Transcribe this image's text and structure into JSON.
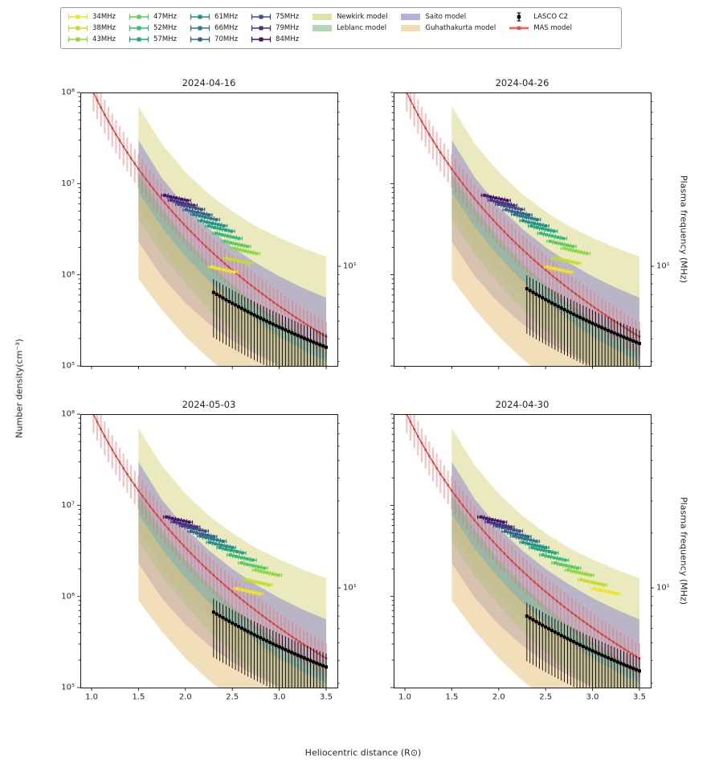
{
  "figure": {
    "background": "#ffffff",
    "xlabel": "Heliocentric distance (R⊙)",
    "ylabel_left": "Number density(cm⁻³)",
    "ylabel_right": "Plasma frequency (MHz)"
  },
  "legend": {
    "freq_items": [
      {
        "label": "34MHz",
        "color": "#f0e32a"
      },
      {
        "label": "38MHz",
        "color": "#c3dd2c"
      },
      {
        "label": "43MHz",
        "color": "#8ed645"
      },
      {
        "label": "47MHz",
        "color": "#5ec962"
      },
      {
        "label": "52MHz",
        "color": "#38b977"
      },
      {
        "label": "57MHz",
        "color": "#25a584"
      },
      {
        "label": "61MHz",
        "color": "#21918c"
      },
      {
        "label": "66MHz",
        "color": "#2a7a8e"
      },
      {
        "label": "70MHz",
        "color": "#33648d"
      },
      {
        "label": "75MHz",
        "color": "#3d4e8a"
      },
      {
        "label": "79MHz",
        "color": "#46327e"
      },
      {
        "label": "84MHz",
        "color": "#45156e"
      }
    ],
    "model_items": [
      {
        "label": "Newkirk model",
        "color": "#e1e2a8"
      },
      {
        "label": "Leblanc model",
        "color": "#b4d6b4"
      },
      {
        "label": "Saito model",
        "color": "#b6aede"
      },
      {
        "label": "Guhathakurta model",
        "color": "#f0ddb0"
      }
    ],
    "marker_items": [
      {
        "label": "LASCO C2",
        "color": "#000000",
        "type": "errorbar"
      },
      {
        "label": "MAS model",
        "color": "#e05252",
        "err_color": "#f4a6a6",
        "type": "line"
      }
    ]
  },
  "chart_data": {
    "type": "line",
    "subtype": "multi-panel errorbar on log-y axis",
    "xlabel": "Heliocentric distance (R⊙)",
    "ylabel": "Number density(cm⁻³)",
    "ylabel_right": "Plasma frequency (MHz)",
    "xlim": [
      0.88,
      3.62
    ],
    "ylog_lim": [
      5,
      8
    ],
    "x_ticks": [
      {
        "label": "1.0",
        "value": 1.0
      },
      {
        "label": "1.5",
        "value": 1.5
      },
      {
        "label": "2.0",
        "value": 2.0
      },
      {
        "label": "2.5",
        "value": 2.5
      },
      {
        "label": "3.0",
        "value": 3.0
      },
      {
        "label": "3.5",
        "value": 3.5
      }
    ],
    "y_ticks": [
      {
        "label": "10⁵",
        "value": 100000.0
      },
      {
        "label": "10⁶",
        "value": 1000000.0
      },
      {
        "label": "10⁷",
        "value": 10000000.0
      },
      {
        "label": "10⁸",
        "value": 100000000.0
      }
    ],
    "right_tick": {
      "label": "10¹",
      "value": 1240000.0
    },
    "bands": [
      {
        "name": "Newkirk model",
        "fill": "rgba(214,214,125,0.5)",
        "x": [
          1.5,
          1.75,
          2.0,
          2.25,
          2.5,
          2.75,
          3.0,
          3.25,
          3.5
        ],
        "upper": [
          70000000.0,
          27000000.0,
          13400000.0,
          7700000.0,
          4950000.0,
          3400000.0,
          2550000.0,
          1970000.0,
          1580000.0
        ],
        "lower": [
          5400000.0,
          2100000.0,
          1030000.0,
          590000.0,
          380000.0,
          270000.0,
          200000.0,
          150000.0,
          120000.0
        ]
      },
      {
        "name": "Saito model",
        "fill": "rgba(138,128,205,0.5)",
        "x": [
          1.5,
          1.75,
          2.0,
          2.25,
          2.5,
          2.75,
          3.0,
          3.25,
          3.5
        ],
        "upper": [
          30000000.0,
          11500000.0,
          5600000.0,
          3200000.0,
          2000000.0,
          1350000.0,
          960000.0,
          720000.0,
          560000.0
        ],
        "lower": [
          2300000.0,
          950000.0,
          490000.0,
          290000.0,
          190000.0,
          135000.0,
          100000.0,
          78000.0,
          62000.0
        ]
      },
      {
        "name": "Leblanc model",
        "fill": "rgba(120,185,130,0.5)",
        "x": [
          1.5,
          1.75,
          2.0,
          2.25,
          2.5,
          2.75,
          3.0,
          3.25,
          3.5
        ],
        "upper": [
          12800000.0,
          5300000.0,
          2500000.0,
          1340000.0,
          780000.0,
          480000.0,
          315000.0,
          220000.0,
          157000.0
        ],
        "lower": [
          4000000.0,
          1670000.0,
          800000.0,
          420000.0,
          240000.0,
          150000.0,
          99000.0,
          68000.0,
          49000.0
        ]
      },
      {
        "name": "Guhathakurta model",
        "fill": "rgba(232,196,130,0.55)",
        "x": [
          1.5,
          1.75,
          2.0,
          2.25,
          2.5,
          2.75,
          3.0,
          3.25,
          3.5
        ],
        "upper": [
          8000000.0,
          3300000.0,
          1600000.0,
          860000.0,
          510000.0,
          320000.0,
          210000.0,
          150000.0,
          110000.0
        ],
        "lower": [
          900000.0,
          410000.0,
          210000.0,
          120000.0,
          75000.0,
          50000.0,
          35000.0,
          26000.0,
          20000.0
        ]
      }
    ],
    "mas_model": {
      "r0": 1.02,
      "step": 0.04,
      "points": 63,
      "amplitude": 110000000.0,
      "power": -5,
      "err_up": 1.45,
      "err_down": 0.62,
      "line_color": "#d94040",
      "err_color": "rgba(235,110,110,0.45)"
    },
    "frequencies": [
      {
        "label": "34MHz",
        "color": "#f0e32a",
        "density": 1150000.0
      },
      {
        "label": "38MHz",
        "color": "#c3dd2c",
        "density": 1440000.0
      },
      {
        "label": "43MHz",
        "color": "#8ed645",
        "density": 1840000.0
      },
      {
        "label": "47MHz",
        "color": "#5ec962",
        "density": 2200000.0
      },
      {
        "label": "52MHz",
        "color": "#38b977",
        "density": 2690000.0
      },
      {
        "label": "57MHz",
        "color": "#25a584",
        "density": 3230000.0
      },
      {
        "label": "61MHz",
        "color": "#21918c",
        "density": 3700000.0
      },
      {
        "label": "66MHz",
        "color": "#2a7a8e",
        "density": 4330000.0
      },
      {
        "label": "70MHz",
        "color": "#33648d",
        "density": 4880000.0
      },
      {
        "label": "75MHz",
        "color": "#3d4e8a",
        "density": 5600000.0
      },
      {
        "label": "79MHz",
        "color": "#46327e",
        "density": 6210000.0
      },
      {
        "label": "84MHz",
        "color": "#45156e",
        "density": 7020000.0
      }
    ],
    "point_dx": [
      0,
      0.06,
      0.12,
      0.18,
      0.24
    ],
    "point_yfactor": [
      1.06,
      1.02,
      0.99,
      0.96,
      0.93
    ],
    "point_xerr": 0.035,
    "panels": [
      {
        "title": "2024-04-16",
        "show_y_labels": true,
        "show_x_labels": false,
        "lasco": {
          "x0": 2.3,
          "x1": 3.5,
          "points": 37,
          "amplitude": 10000000.0,
          "power": -3.3,
          "err_up": 1.4,
          "err_down": 0.32
        },
        "freq_x_starts": [
          2.28,
          2.44,
          2.52,
          2.42,
          2.33,
          2.25,
          2.17,
          2.09,
          2.01,
          1.93,
          1.85,
          1.78
        ]
      },
      {
        "title": "2024-04-26",
        "show_y_labels": false,
        "show_x_labels": false,
        "lasco": {
          "x0": 2.3,
          "x1": 3.5,
          "points": 37,
          "amplitude": 11000000.0,
          "power": -3.3,
          "err_up": 1.4,
          "err_down": 0.32
        },
        "freq_x_starts": [
          2.52,
          2.6,
          2.7,
          2.55,
          2.45,
          2.35,
          2.26,
          2.17,
          2.08,
          2.0,
          1.92,
          1.85
        ]
      },
      {
        "title": "2024-05-03",
        "show_y_labels": true,
        "show_x_labels": true,
        "lasco": {
          "x0": 2.3,
          "x1": 3.5,
          "points": 37,
          "amplitude": 10500000.0,
          "power": -3.3,
          "err_up": 1.4,
          "err_down": 0.32
        },
        "freq_x_starts": [
          2.55,
          2.65,
          2.75,
          2.6,
          2.48,
          2.37,
          2.26,
          2.16,
          2.06,
          1.97,
          1.88,
          1.8
        ]
      },
      {
        "title": "2024-04-30",
        "show_y_labels": false,
        "show_x_labels": true,
        "lasco": {
          "x0": 2.3,
          "x1": 3.5,
          "points": 37,
          "amplitude": 9500000.0,
          "power": -3.3,
          "err_up": 1.4,
          "err_down": 0.32
        },
        "freq_x_starts": [
          3.02,
          2.88,
          2.74,
          2.6,
          2.47,
          2.36,
          2.26,
          2.16,
          2.07,
          1.98,
          1.89,
          1.81
        ]
      }
    ]
  }
}
